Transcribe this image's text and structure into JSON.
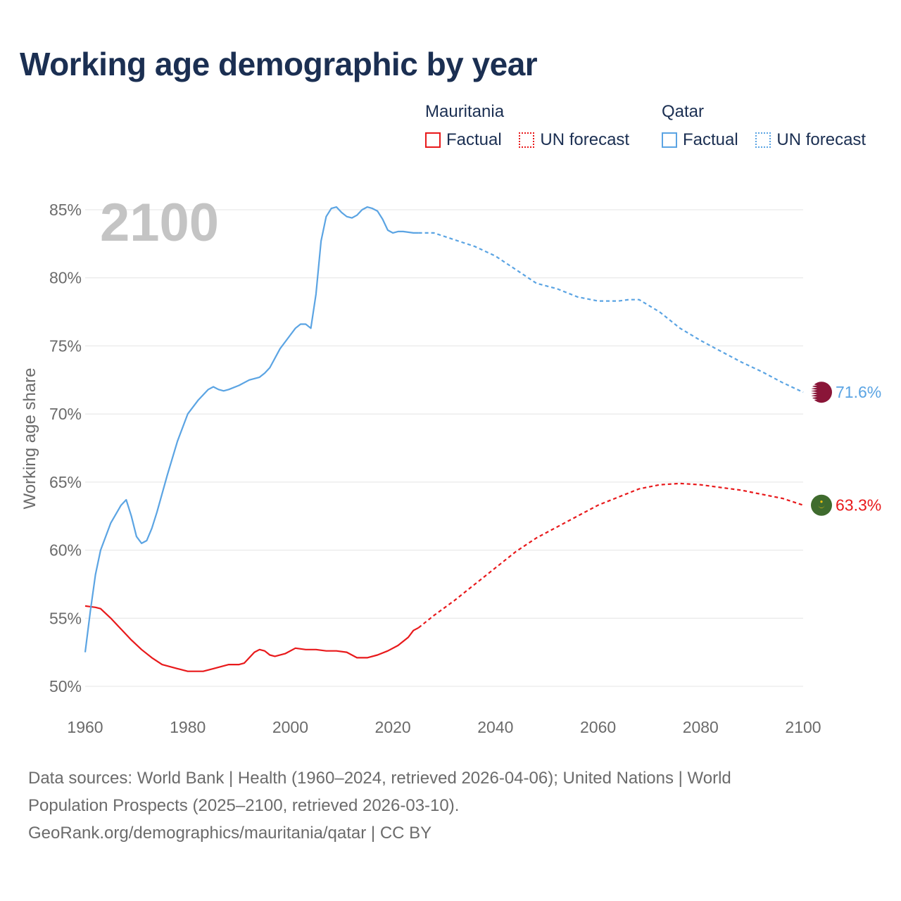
{
  "title": "Working age demographic by year",
  "legend": {
    "groups": [
      {
        "name": "Mauritania",
        "color": "#e8191b",
        "factual_label": "Factual",
        "forecast_label": "UN forecast"
      },
      {
        "name": "Qatar",
        "color": "#5ba4e3",
        "factual_label": "Factual",
        "forecast_label": "UN forecast"
      }
    ]
  },
  "year_watermark": "2100",
  "footer": {
    "line1": "Data sources: World Bank | Health (1960–2024, retrieved 2026-04-06); United Nations | World",
    "line2": "Population Prospects (2025–2100, retrieved 2026-03-10).",
    "line3": "GeoRank.org/demographics/mauritania/qatar | CC BY"
  },
  "chart_data": {
    "type": "line",
    "title": "Working age demographic by year",
    "xlabel": "",
    "ylabel": "Working age share",
    "xlim": [
      1960,
      2100
    ],
    "ylim": [
      50,
      85
    ],
    "x_ticks": [
      1960,
      1980,
      2000,
      2020,
      2040,
      2060,
      2080,
      2100
    ],
    "y_ticks": [
      50,
      55,
      60,
      65,
      70,
      75,
      80,
      85
    ],
    "y_tick_suffix": "%",
    "grid": true,
    "forecast_start": 2025,
    "series": [
      {
        "name": "Mauritania",
        "color": "#e8191b",
        "end_label": "63.3%",
        "points": [
          [
            1960,
            55.9
          ],
          [
            1962,
            55.8
          ],
          [
            1963,
            55.7
          ],
          [
            1965,
            55.0
          ],
          [
            1967,
            54.2
          ],
          [
            1969,
            53.4
          ],
          [
            1971,
            52.7
          ],
          [
            1973,
            52.1
          ],
          [
            1975,
            51.6
          ],
          [
            1978,
            51.3
          ],
          [
            1980,
            51.1
          ],
          [
            1983,
            51.1
          ],
          [
            1985,
            51.3
          ],
          [
            1988,
            51.6
          ],
          [
            1990,
            51.6
          ],
          [
            1991,
            51.7
          ],
          [
            1993,
            52.5
          ],
          [
            1994,
            52.7
          ],
          [
            1995,
            52.6
          ],
          [
            1996,
            52.3
          ],
          [
            1997,
            52.2
          ],
          [
            1999,
            52.4
          ],
          [
            2001,
            52.8
          ],
          [
            2003,
            52.7
          ],
          [
            2005,
            52.7
          ],
          [
            2007,
            52.6
          ],
          [
            2009,
            52.6
          ],
          [
            2011,
            52.5
          ],
          [
            2013,
            52.1
          ],
          [
            2015,
            52.1
          ],
          [
            2017,
            52.3
          ],
          [
            2019,
            52.6
          ],
          [
            2021,
            53.0
          ],
          [
            2023,
            53.6
          ],
          [
            2024,
            54.1
          ],
          [
            2025,
            54.3
          ],
          [
            2028,
            55.2
          ],
          [
            2032,
            56.3
          ],
          [
            2036,
            57.5
          ],
          [
            2040,
            58.7
          ],
          [
            2044,
            59.9
          ],
          [
            2048,
            60.9
          ],
          [
            2052,
            61.7
          ],
          [
            2056,
            62.5
          ],
          [
            2060,
            63.3
          ],
          [
            2064,
            63.9
          ],
          [
            2068,
            64.5
          ],
          [
            2072,
            64.8
          ],
          [
            2076,
            64.9
          ],
          [
            2080,
            64.8
          ],
          [
            2084,
            64.6
          ],
          [
            2088,
            64.4
          ],
          [
            2092,
            64.1
          ],
          [
            2096,
            63.8
          ],
          [
            2100,
            63.3
          ]
        ]
      },
      {
        "name": "Qatar",
        "color": "#5ba4e3",
        "end_label": "71.6%",
        "points": [
          [
            1960,
            52.5
          ],
          [
            1961,
            55.5
          ],
          [
            1962,
            58.2
          ],
          [
            1963,
            60.0
          ],
          [
            1965,
            62.0
          ],
          [
            1967,
            63.3
          ],
          [
            1968,
            63.7
          ],
          [
            1969,
            62.5
          ],
          [
            1970,
            61.0
          ],
          [
            1971,
            60.5
          ],
          [
            1972,
            60.7
          ],
          [
            1973,
            61.6
          ],
          [
            1974,
            62.8
          ],
          [
            1976,
            65.5
          ],
          [
            1978,
            68.0
          ],
          [
            1980,
            70.0
          ],
          [
            1982,
            71.0
          ],
          [
            1984,
            71.8
          ],
          [
            1985,
            72.0
          ],
          [
            1986,
            71.8
          ],
          [
            1987,
            71.7
          ],
          [
            1988,
            71.8
          ],
          [
            1990,
            72.1
          ],
          [
            1992,
            72.5
          ],
          [
            1994,
            72.7
          ],
          [
            1995,
            73.0
          ],
          [
            1996,
            73.4
          ],
          [
            1998,
            74.8
          ],
          [
            2000,
            75.8
          ],
          [
            2001,
            76.3
          ],
          [
            2002,
            76.6
          ],
          [
            2003,
            76.6
          ],
          [
            2004,
            76.3
          ],
          [
            2005,
            78.8
          ],
          [
            2006,
            82.7
          ],
          [
            2007,
            84.5
          ],
          [
            2008,
            85.1
          ],
          [
            2009,
            85.2
          ],
          [
            2010,
            84.8
          ],
          [
            2011,
            84.5
          ],
          [
            2012,
            84.4
          ],
          [
            2013,
            84.6
          ],
          [
            2014,
            85.0
          ],
          [
            2015,
            85.2
          ],
          [
            2016,
            85.1
          ],
          [
            2017,
            84.9
          ],
          [
            2018,
            84.3
          ],
          [
            2019,
            83.5
          ],
          [
            2020,
            83.3
          ],
          [
            2021,
            83.4
          ],
          [
            2022,
            83.4
          ],
          [
            2024,
            83.3
          ],
          [
            2025,
            83.3
          ],
          [
            2028,
            83.3
          ],
          [
            2032,
            82.8
          ],
          [
            2036,
            82.3
          ],
          [
            2040,
            81.6
          ],
          [
            2044,
            80.6
          ],
          [
            2048,
            79.6
          ],
          [
            2052,
            79.2
          ],
          [
            2056,
            78.6
          ],
          [
            2060,
            78.3
          ],
          [
            2064,
            78.3
          ],
          [
            2066,
            78.4
          ],
          [
            2068,
            78.4
          ],
          [
            2072,
            77.5
          ],
          [
            2076,
            76.3
          ],
          [
            2080,
            75.4
          ],
          [
            2084,
            74.6
          ],
          [
            2088,
            73.8
          ],
          [
            2092,
            73.1
          ],
          [
            2096,
            72.3
          ],
          [
            2100,
            71.6
          ]
        ]
      }
    ]
  }
}
